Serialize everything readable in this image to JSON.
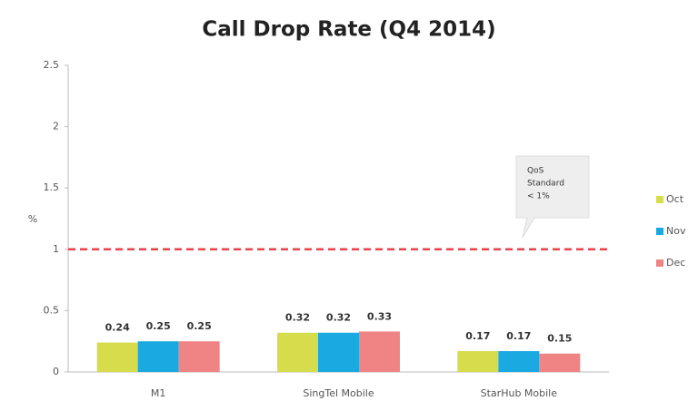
{
  "chart_data": {
    "type": "bar",
    "title": "Call Drop Rate (Q4 2014)",
    "y_label": "%",
    "categories": [
      "M1",
      "SingTel Mobile",
      "StarHub Mobile"
    ],
    "series": [
      {
        "name": "Oct",
        "color": "#d6dc4c",
        "values": [
          0.24,
          0.32,
          0.17
        ]
      },
      {
        "name": "Nov",
        "color": "#1ba9e1",
        "values": [
          0.25,
          0.32,
          0.17
        ]
      },
      {
        "name": "Dec",
        "color": "#f08484",
        "values": [
          0.25,
          0.33,
          0.15
        ]
      }
    ],
    "ylim": [
      0,
      2.5
    ],
    "yticks": [
      0,
      0.5,
      1,
      1.5,
      2,
      2.5
    ],
    "grid": false,
    "threshold": {
      "value": 1,
      "color": "#e8424a",
      "annotation": [
        "QoS",
        "Standard",
        "< 1%"
      ]
    },
    "legend": "right"
  }
}
